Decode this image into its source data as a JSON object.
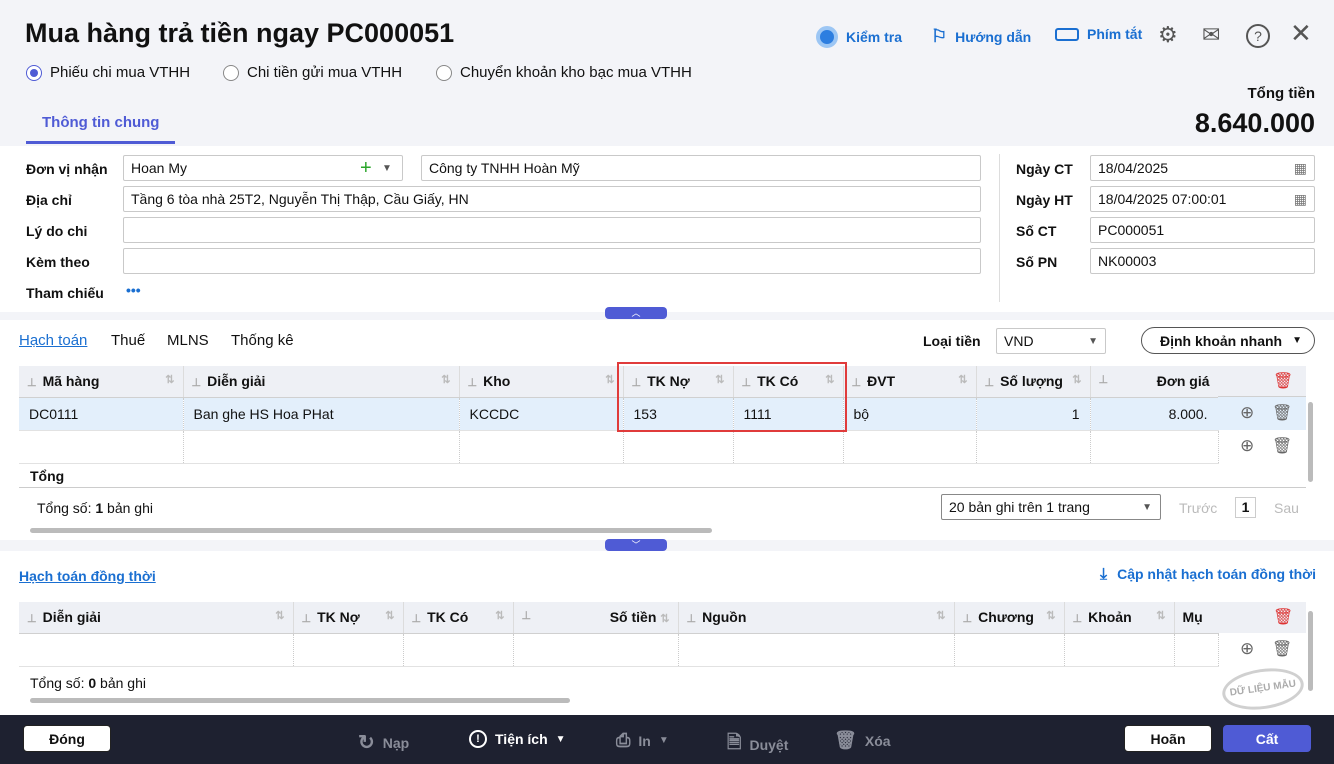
{
  "title": "Mua hàng trả tiền ngay PC000051",
  "toolbar": {
    "check": "Kiểm tra",
    "guide": "Hướng dẫn",
    "shortcuts": "Phím tắt"
  },
  "payment_types": [
    {
      "label": "Phiếu chi mua VTHH",
      "selected": true
    },
    {
      "label": "Chi tiền gửi mua VTHH",
      "selected": false
    },
    {
      "label": "Chuyển khoản kho bạc mua VTHH",
      "selected": false
    }
  ],
  "tabs": {
    "general": "Thông tin chung"
  },
  "total": {
    "label": "Tổng tiền",
    "value": "8.640.000"
  },
  "form": {
    "receiver_label": "Đơn vị nhận",
    "receiver_code": "Hoan My",
    "receiver_name": "Công ty TNHH Hoàn Mỹ",
    "address_label": "Địa chỉ",
    "address": "Tầng 6 tòa nhà 25T2, Nguyễn Thị Thập, Cầu Giấy, HN",
    "reason_label": "Lý do chi",
    "reason": "",
    "attach_label": "Kèm theo",
    "attach": "",
    "ref_label": "Tham chiếu",
    "ref_more": "•••",
    "date_ct_label": "Ngày CT",
    "date_ct": "18/04/2025",
    "date_ht_label": "Ngày HT",
    "date_ht": "18/04/2025 07:00:01",
    "so_ct_label": "Số CT",
    "so_ct": "PC000051",
    "so_pn_label": "Số PN",
    "so_pn": "NK00003"
  },
  "detail_tabs": [
    "Hạch toán",
    "Thuế",
    "MLNS",
    "Thống kê"
  ],
  "currency": {
    "label": "Loại tiền",
    "value": "VND"
  },
  "quick_entry": "Định khoản nhanh",
  "grid": {
    "columns": [
      "Mã hàng",
      "Diễn giải",
      "Kho",
      "TK Nợ",
      "TK Có",
      "ĐVT",
      "Số lượng",
      "Đơn giá"
    ],
    "rows": [
      [
        "DC0111",
        "Ban ghe HS Hoa PHat",
        "KCCDC",
        "153",
        "1111",
        "bộ",
        "1",
        "8.000."
      ]
    ],
    "total_label": "Tổng",
    "count_prefix": "Tổng số: ",
    "count": "1",
    "count_suffix": " bản ghi",
    "page_size": "20 bản ghi trên 1 trang",
    "prev": "Trước",
    "page": "1",
    "next": "Sau"
  },
  "concurrent": {
    "title": "Hạch toán đồng thời",
    "update": "Cập nhật hạch toán đồng thời",
    "columns": [
      "Diễn giải",
      "TK Nợ",
      "TK Có",
      "Số tiền",
      "Nguồn",
      "Chương",
      "Khoản",
      "Mụ"
    ],
    "count_prefix": "Tổng số: ",
    "count": "0",
    "count_suffix": " bản ghi",
    "watermark": "DỮ LIỆU MẪU"
  },
  "footer": {
    "close": "Đóng",
    "reload": "Nạp",
    "utilities": "Tiện ích",
    "print": "In",
    "approve": "Duyệt",
    "delete": "Xóa",
    "cancel": "Hoãn",
    "save": "Cất"
  },
  "colors": {
    "accent": "#4f5bd5",
    "link": "#1a6fd1",
    "highlight_border": "#e03b3b",
    "footer": "#1e2130",
    "selected_row": "#e3effb"
  }
}
